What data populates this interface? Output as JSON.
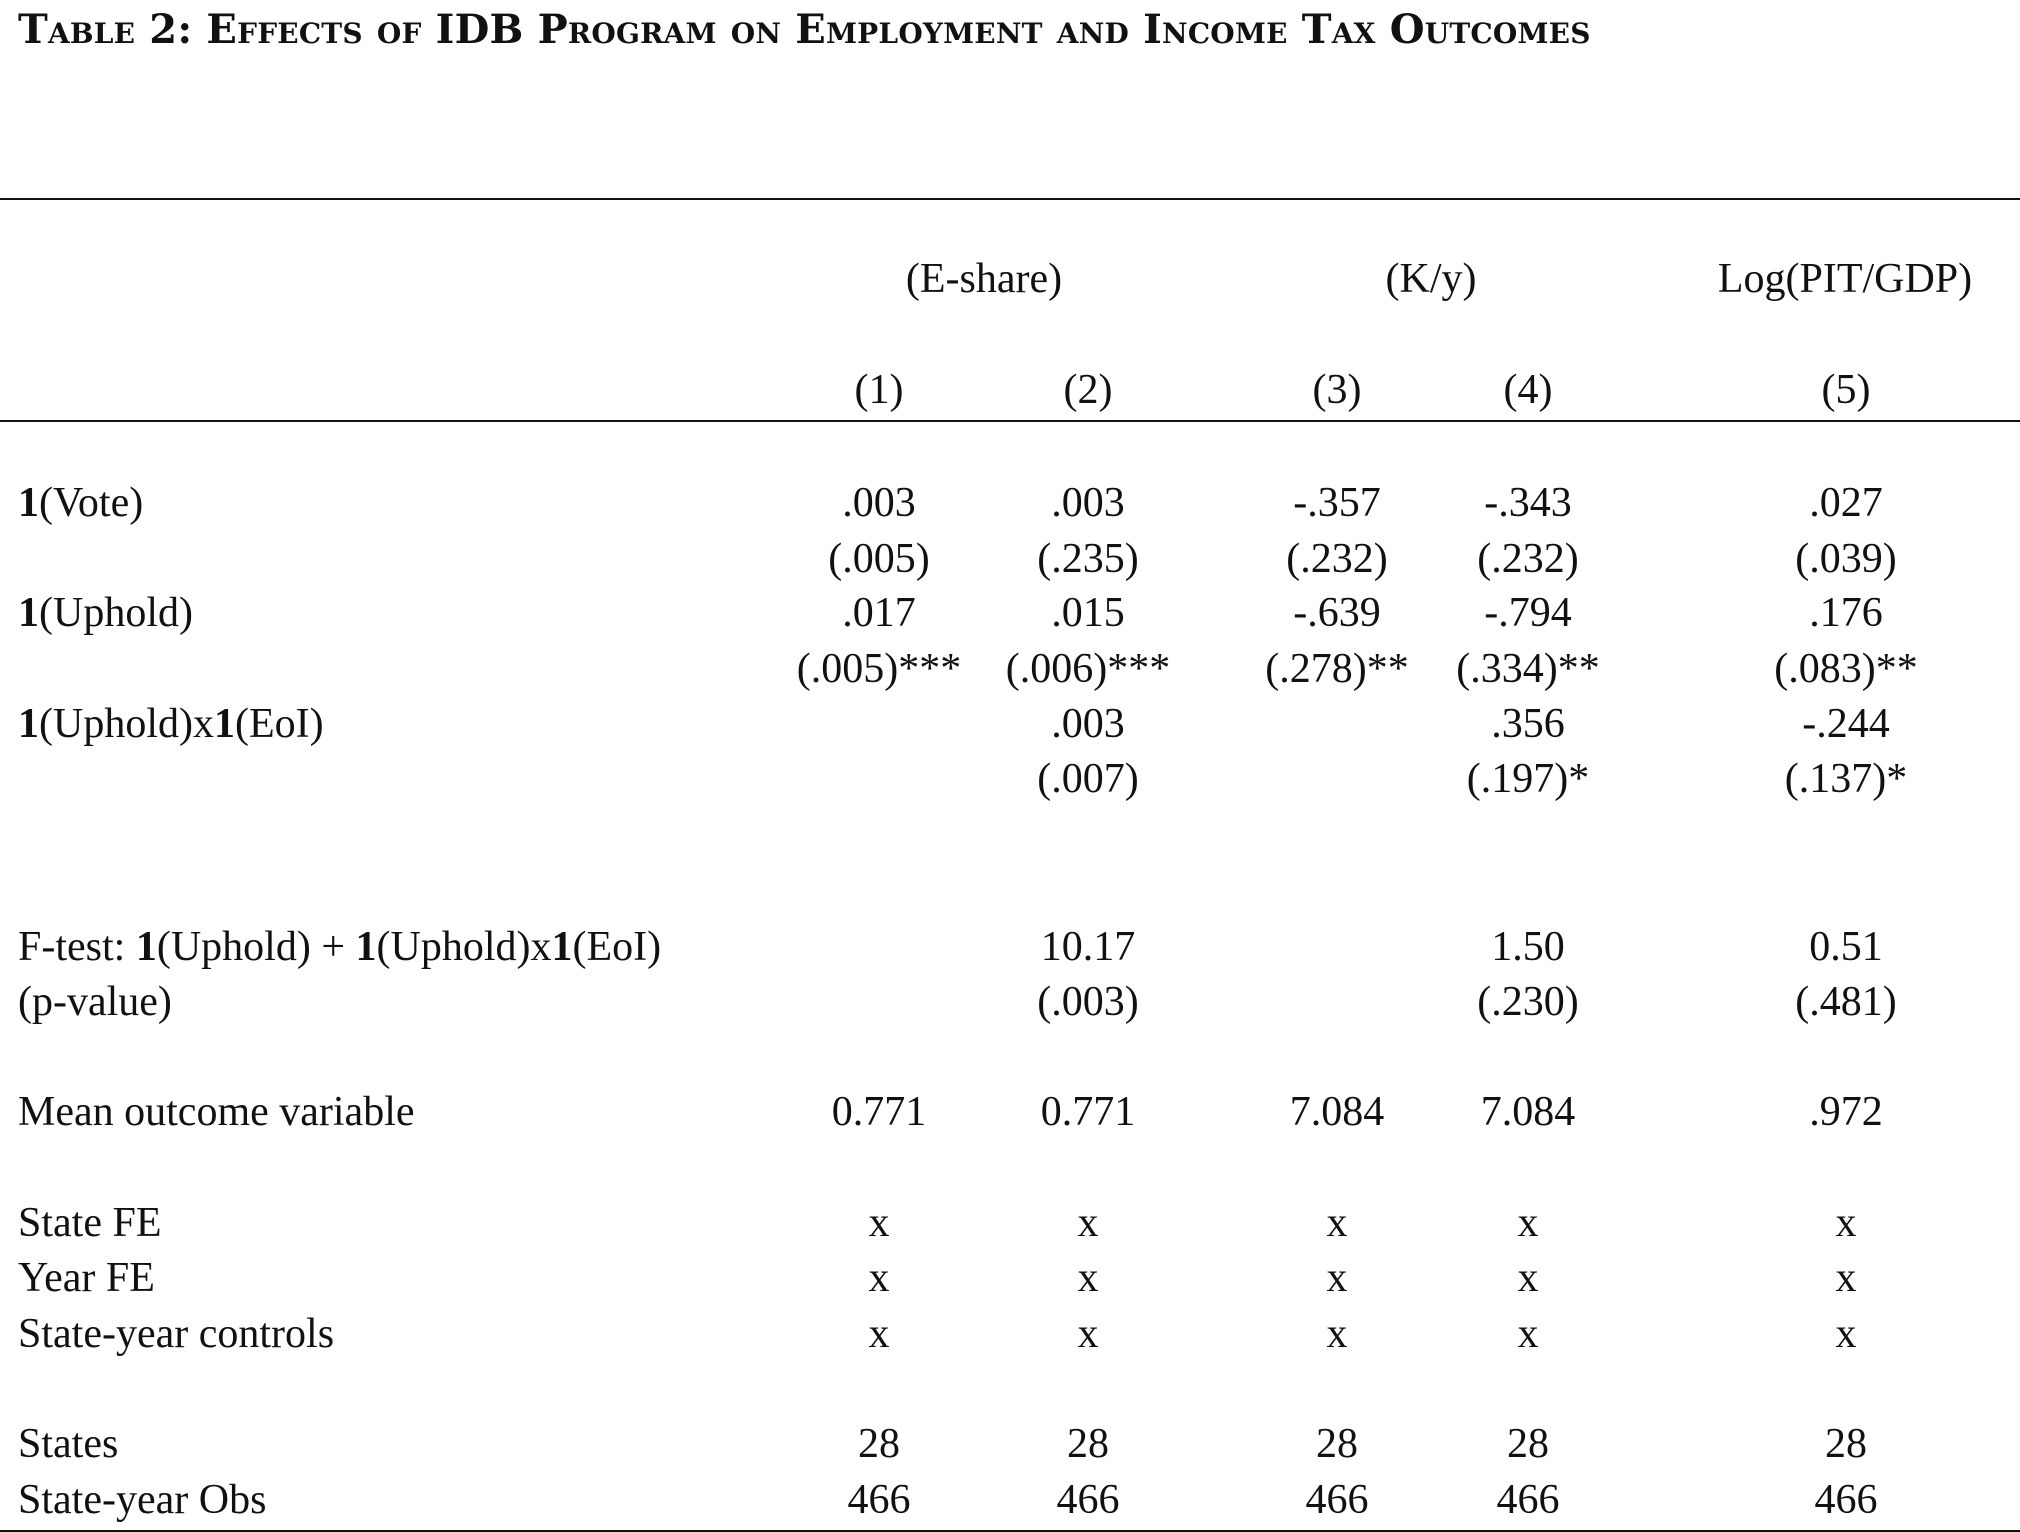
{
  "title": "Table 2: Effects of IDB Program on Employment and Income Tax Outcomes",
  "group_headers": [
    "(E-share)",
    "(K/y)",
    "Log(PIT/GDP)"
  ],
  "column_numbers": [
    "(1)",
    "(2)",
    "(3)",
    "(4)",
    "(5)"
  ],
  "rows": [
    {
      "label_parts": [
        "1",
        "(Vote)"
      ],
      "values": [
        ".003",
        ".003",
        "-.357",
        "-.343",
        ".027"
      ]
    },
    {
      "label_parts": [],
      "values": [
        "(.005)",
        "(.235)",
        "(.232)",
        "(.232)",
        "(.039)"
      ]
    },
    {
      "label_parts": [
        "1",
        "(Uphold)"
      ],
      "values": [
        ".017",
        ".015",
        "-.639",
        "-.794",
        ".176"
      ]
    },
    {
      "label_parts": [],
      "values": [
        "(.005)***",
        "(.006)***",
        "(.278)**",
        "(.334)**",
        "(.083)**"
      ]
    },
    {
      "label_parts": [
        "1",
        "(Uphold)x",
        "1",
        "(EoI)"
      ],
      "values": [
        "",
        ".003",
        "",
        ".356",
        "-.244"
      ]
    },
    {
      "label_parts": [],
      "values": [
        "",
        "(.007)",
        "",
        "(.197)*",
        "(.137)*"
      ]
    },
    {
      "label_parts": [
        "F-test: ",
        "1",
        "(Uphold) + ",
        "1",
        "(Uphold)x",
        "1",
        "(EoI)"
      ],
      "values": [
        "",
        "10.17",
        "",
        "1.50",
        "0.51"
      ]
    },
    {
      "label_parts": [
        "(p-value)"
      ],
      "values": [
        "",
        "(.003)",
        "",
        "(.230)",
        "(.481)"
      ]
    },
    {
      "label_parts": [
        "Mean outcome variable"
      ],
      "values": [
        "0.771",
        "0.771",
        "7.084",
        "7.084",
        ".972"
      ]
    },
    {
      "label_parts": [
        "State FE"
      ],
      "values": [
        "x",
        "x",
        "x",
        "x",
        "x"
      ]
    },
    {
      "label_parts": [
        "Year FE"
      ],
      "values": [
        "x",
        "x",
        "x",
        "x",
        "x"
      ]
    },
    {
      "label_parts": [
        "State-year controls"
      ],
      "values": [
        "x",
        "x",
        "x",
        "x",
        "x"
      ]
    },
    {
      "label_parts": [
        "States"
      ],
      "values": [
        "28",
        "28",
        "28",
        "28",
        "28"
      ]
    },
    {
      "label_parts": [
        "State-year Obs"
      ],
      "values": [
        "466",
        "466",
        "466",
        "466",
        "466"
      ]
    }
  ]
}
